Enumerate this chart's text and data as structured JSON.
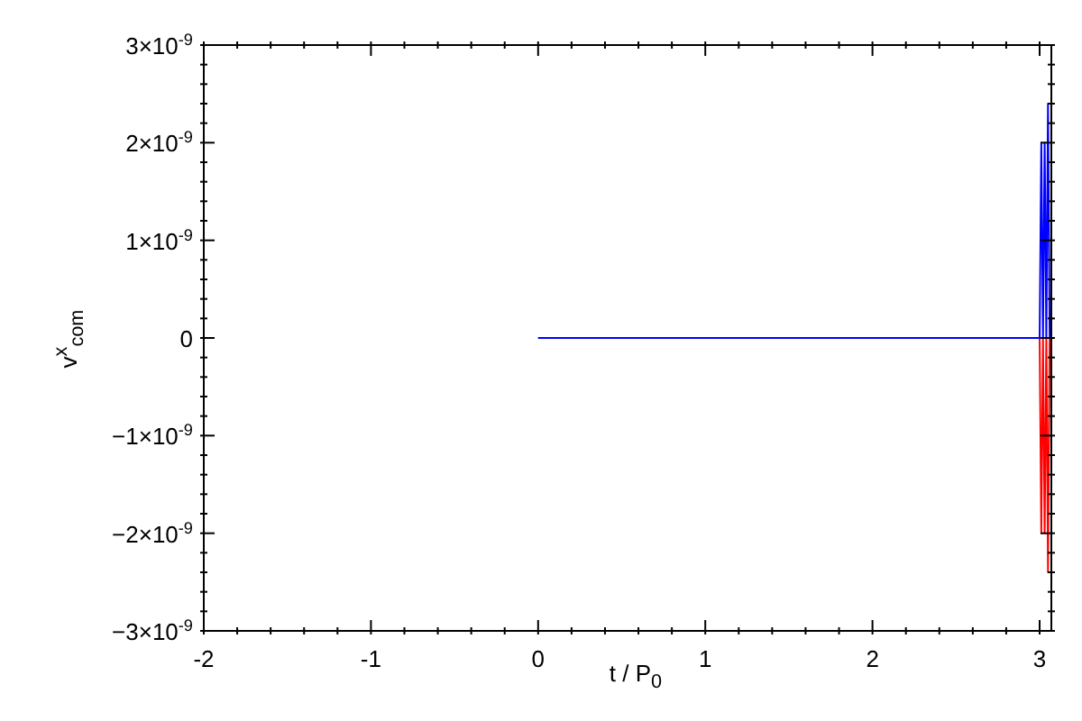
{
  "chart_data": {
    "type": "line",
    "xlabel": "t / P$_{0}$",
    "ylabel": "v$^{x}$$_{com}$",
    "xlim": [
      -2,
      3.07
    ],
    "ylim": [
      -3e-09,
      3e-09
    ],
    "xticks": [
      -2,
      {
        "value": -1.8,
        "label": null
      },
      {
        "value": -1.6,
        "label": null
      },
      {
        "value": -1.4,
        "label": null
      },
      {
        "value": -1.2,
        "label": null
      },
      -1,
      {
        "value": -0.8,
        "label": null
      },
      {
        "value": -0.6,
        "label": null
      },
      {
        "value": -0.4,
        "label": null
      },
      {
        "value": -0.2,
        "label": null
      },
      0,
      {
        "value": 0.2,
        "label": null
      },
      {
        "value": 0.4,
        "label": null
      },
      {
        "value": 0.6,
        "label": null
      },
      {
        "value": 0.8,
        "label": null
      },
      1,
      {
        "value": 1.2,
        "label": null
      },
      {
        "value": 1.4,
        "label": null
      },
      {
        "value": 1.6,
        "label": null
      },
      {
        "value": 1.8,
        "label": null
      },
      2,
      {
        "value": 2.2,
        "label": null
      },
      {
        "value": 2.4,
        "label": null
      },
      {
        "value": 2.6,
        "label": null
      },
      {
        "value": 2.8,
        "label": null
      },
      3
    ],
    "yticks": [
      {
        "value": -3e-09,
        "label": "−3×10$^{-9}$"
      },
      {
        "value": -2.8e-09,
        "label": null
      },
      {
        "value": -2.6e-09,
        "label": null
      },
      {
        "value": -2.4e-09,
        "label": null
      },
      {
        "value": -2.2e-09,
        "label": null
      },
      {
        "value": -2e-09,
        "label": "−2×10$^{-9}$"
      },
      {
        "value": -1.8e-09,
        "label": null
      },
      {
        "value": -1.6e-09,
        "label": null
      },
      {
        "value": -1.4e-09,
        "label": null
      },
      {
        "value": -1.2e-09,
        "label": null
      },
      {
        "value": -1e-09,
        "label": "−1×10$^{-9}$"
      },
      {
        "value": -8e-10,
        "label": null
      },
      {
        "value": -6e-10,
        "label": null
      },
      {
        "value": -4e-10,
        "label": null
      },
      {
        "value": -2e-10,
        "label": null
      },
      0,
      {
        "value": 2e-10,
        "label": null
      },
      {
        "value": 4e-10,
        "label": null
      },
      {
        "value": 6e-10,
        "label": null
      },
      {
        "value": 8e-10,
        "label": null
      },
      {
        "value": 1e-09,
        "label": "1×10$^{-9}$"
      },
      {
        "value": 1.2e-09,
        "label": null
      },
      {
        "value": 1.4e-09,
        "label": null
      },
      {
        "value": 1.6e-09,
        "label": null
      },
      {
        "value": 1.8e-09,
        "label": null
      },
      {
        "value": 2e-09,
        "label": "2×10$^{-9}$"
      },
      {
        "value": 2.2e-09,
        "label": null
      },
      {
        "value": 2.4e-09,
        "label": null
      },
      {
        "value": 2.6e-09,
        "label": null
      },
      {
        "value": 2.8e-09,
        "label": null
      },
      {
        "value": 3e-09,
        "label": "3×10$^{-9}$"
      }
    ],
    "marker": "none",
    "line_style": "solid",
    "series": [
      {
        "color": "#ff0000",
        "x": [
          0,
          3.0,
          3.01,
          3.02,
          3.03,
          3.04,
          3.05,
          3.06
        ],
        "values": [
          0,
          0,
          -2e-09,
          0,
          -2e-09,
          0,
          -2.4e-09,
          0
        ]
      },
      {
        "color": "#0000ff",
        "x": [
          0,
          3.0,
          3.01,
          3.02,
          3.03,
          3.04,
          3.05,
          3.06
        ],
        "values": [
          0,
          0,
          2e-09,
          0,
          2e-09,
          0,
          2.4e-09,
          0
        ]
      }
    ]
  }
}
